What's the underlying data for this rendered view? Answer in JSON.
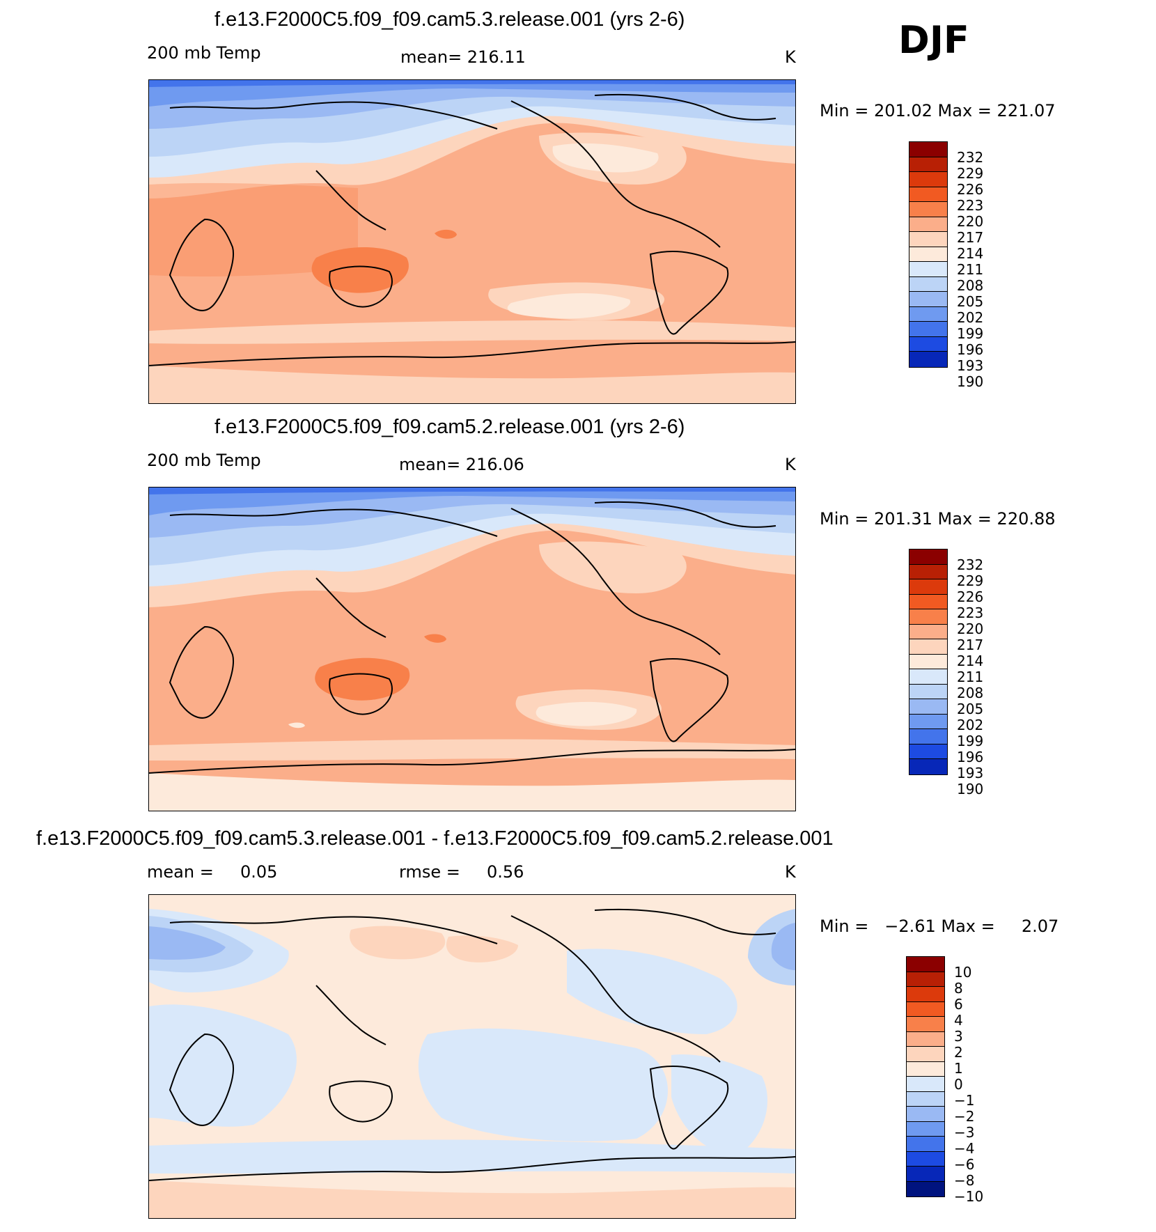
{
  "season": "DJF",
  "panels": [
    {
      "title": "f.e13.F2000C5.f09_f09.cam5.3.release.001 (yrs 2-6)",
      "left_label": "200 mb Temp",
      "center_label": "mean= 216.11",
      "units": "K",
      "minmax": "Min = 201.02 Max = 221.07",
      "levels": [
        "232",
        "229",
        "226",
        "223",
        "220",
        "217",
        "214",
        "211",
        "208",
        "205",
        "202",
        "199",
        "196",
        "193",
        "190"
      ]
    },
    {
      "title": "f.e13.F2000C5.f09_f09.cam5.2.release.001 (yrs 2-6)",
      "left_label": "200 mb Temp",
      "center_label": "mean= 216.06",
      "units": "K",
      "minmax": "Min = 201.31 Max = 220.88",
      "levels": [
        "232",
        "229",
        "226",
        "223",
        "220",
        "217",
        "214",
        "211",
        "208",
        "205",
        "202",
        "199",
        "196",
        "193",
        "190"
      ]
    },
    {
      "title": "f.e13.F2000C5.f09_f09.cam5.3.release.001 - f.e13.F2000C5.f09_f09.cam5.2.release.001",
      "left_label": "mean =     0.05",
      "center_label": "rmse =     0.56",
      "units": "K",
      "minmax": "Min =   −2.61 Max =     2.07",
      "levels": [
        "10",
        "8",
        "6",
        "4",
        "3",
        "2",
        "1",
        "0",
        "−1",
        "−2",
        "−3",
        "−4",
        "−6",
        "−8",
        "−10"
      ]
    }
  ],
  "colors": {
    "scale": [
      "#8b0000",
      "#b82005",
      "#dc3a0c",
      "#f15a22",
      "#f8804a",
      "#fbae8a",
      "#fdd5bd",
      "#fdeadb",
      "#d9e8fa",
      "#bcd4f6",
      "#9ab9f3",
      "#6f9af0",
      "#4374eb",
      "#1d4be2",
      "#0727b8",
      "#00137f"
    ],
    "bar_swatches": [
      "#8b0000",
      "#b82005",
      "#dc3a0c",
      "#f15a22",
      "#f8804a",
      "#fbae8a",
      "#fdd5bd",
      "#fdeadb",
      "#d9e8fa",
      "#bcd4f6",
      "#9ab9f3",
      "#6f9af0",
      "#4374eb",
      "#1d4be2",
      "#0727b8",
      "#00137f"
    ]
  }
}
